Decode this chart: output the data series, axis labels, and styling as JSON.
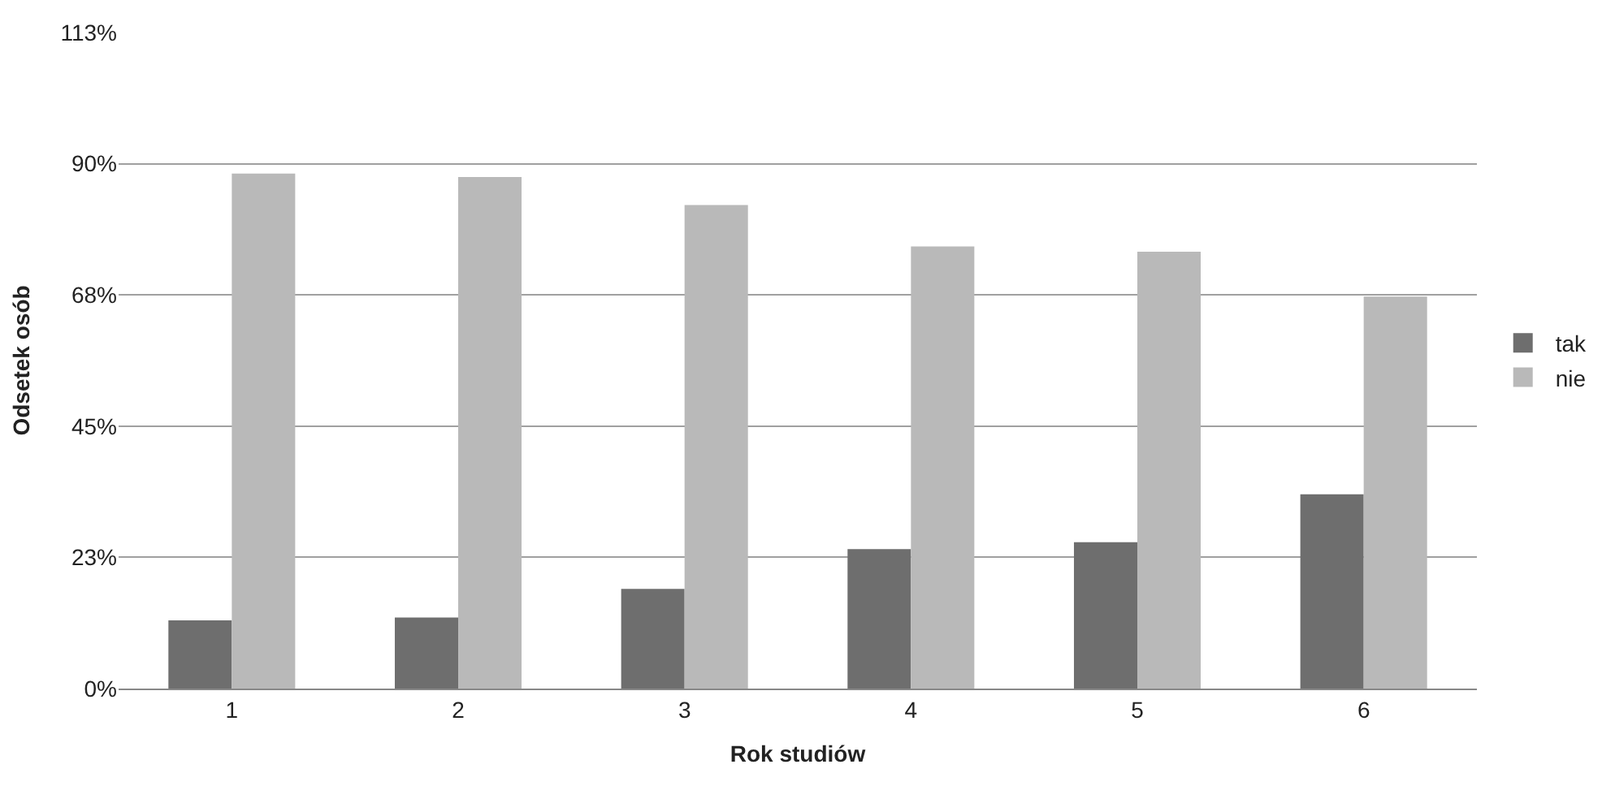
{
  "chart_data": {
    "type": "bar",
    "xlabel": "Rok studiów",
    "ylabel": "Odsetek osób",
    "categories": [
      "1",
      "2",
      "3",
      "4",
      "5",
      "6"
    ],
    "series": [
      {
        "name": "tak",
        "color": "#6e6e6e",
        "values": [
          11.7,
          12.2,
          17.1,
          23.9,
          25.1,
          33.3
        ]
      },
      {
        "name": "nie",
        "color": "#b9b9b9",
        "values": [
          88.3,
          87.7,
          82.9,
          75.8,
          74.9,
          67.2
        ]
      }
    ],
    "ylim": [
      0,
      112.5
    ],
    "yticks": [
      {
        "value": 0,
        "label": "0%"
      },
      {
        "value": 22.5,
        "label": "23%"
      },
      {
        "value": 45,
        "label": "45%"
      },
      {
        "value": 67.5,
        "label": "68%"
      },
      {
        "value": 90,
        "label": "90%"
      },
      {
        "value": 112.5,
        "label": "113%"
      }
    ],
    "grid": "y",
    "legend": "right"
  }
}
